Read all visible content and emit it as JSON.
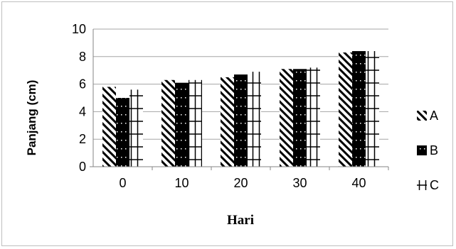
{
  "chart_data": {
    "type": "bar",
    "categories": [
      "0",
      "10",
      "20",
      "30",
      "40"
    ],
    "series": [
      {
        "name": "A",
        "values": [
          5.8,
          6.3,
          6.5,
          7.1,
          8.3
        ]
      },
      {
        "name": "B",
        "values": [
          5.0,
          6.1,
          6.7,
          7.1,
          8.4
        ]
      },
      {
        "name": "C",
        "values": [
          5.6,
          6.3,
          6.9,
          7.2,
          8.4
        ]
      }
    ],
    "xlabel": "Hari",
    "ylabel": "Panjang (cm)",
    "ylim": [
      0,
      10
    ],
    "yticks": [
      "0",
      "2",
      "4",
      "6",
      "8",
      "10"
    ],
    "grid": true,
    "legend_position": "right"
  },
  "colors": {
    "bar": "#000000",
    "grid": "#a6a6a6",
    "axis": "#868686"
  },
  "patterns": [
    "diagonal-stripes",
    "checker-black",
    "cross-hatch"
  ]
}
